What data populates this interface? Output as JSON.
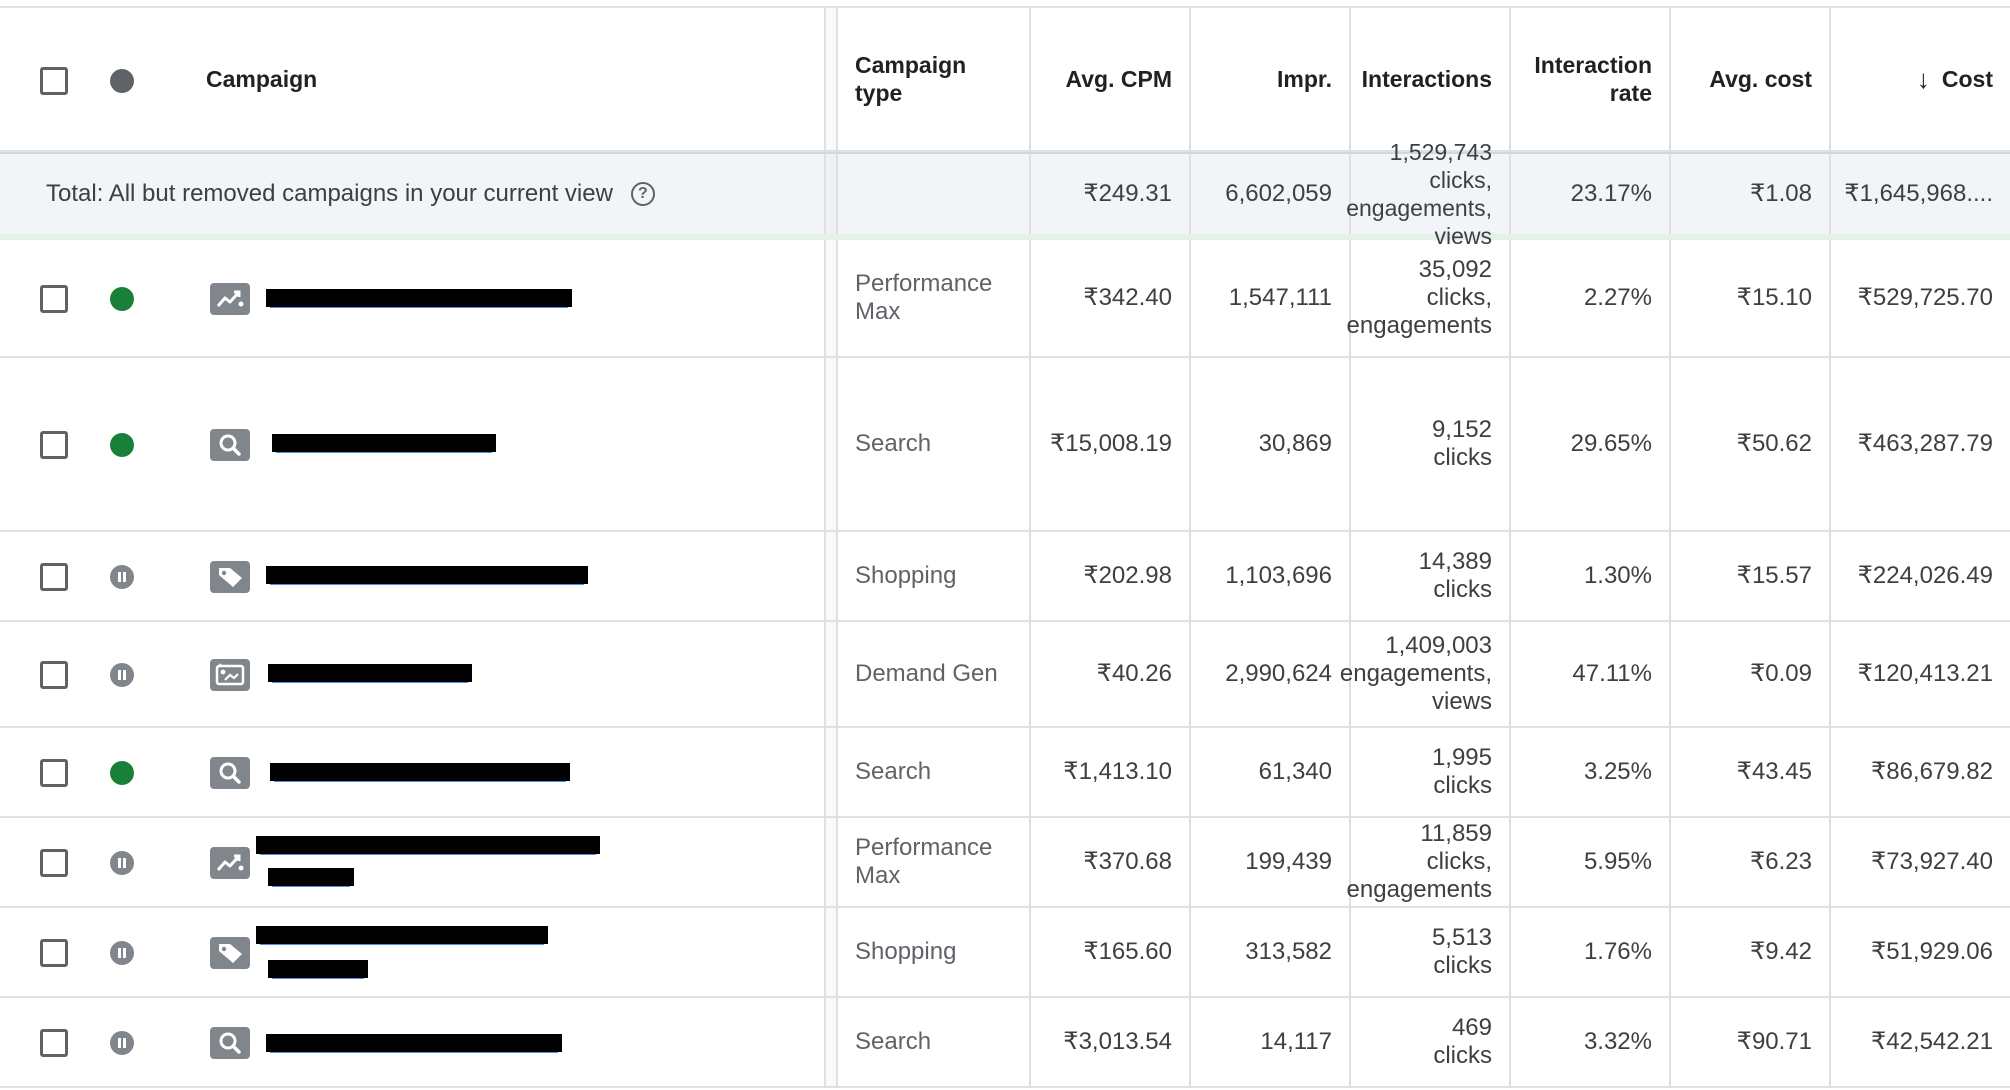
{
  "header": {
    "campaign": "Campaign",
    "campaign_type": "Campaign\ntype",
    "avg_cpm": "Avg. CPM",
    "impr": "Impr.",
    "interactions": "Interactions",
    "interaction_rate": "Interaction\nrate",
    "avg_cost": "Avg. cost",
    "cost": "Cost",
    "sort_icon": "arrow-down-icon"
  },
  "total": {
    "label": "Total: All but removed campaigns in your current view",
    "help_icon": "help-circle-icon",
    "help_glyph": "?",
    "avg_cpm": "₹249.31",
    "impr": "6,602,059",
    "interactions": "1,529,743\nclicks,\nengagements,\nviews",
    "interaction_rate": "23.17%",
    "avg_cost": "₹1.08",
    "cost": "₹1,645,968...."
  },
  "rows": [
    {
      "status": "enabled",
      "type_icon": "performance-max-icon",
      "campaign_type": "Performance\nMax",
      "avg_cpm": "₹342.40",
      "impr": "1,547,111",
      "interactions": "35,092\nclicks,\nengagements",
      "interaction_rate": "2.27%",
      "avg_cost": "₹15.10",
      "cost": "₹529,725.70"
    },
    {
      "status": "enabled",
      "type_icon": "search-icon",
      "campaign_type": "Search",
      "avg_cpm": "₹15,008.19",
      "impr": "30,869",
      "interactions": "9,152\nclicks",
      "interaction_rate": "29.65%",
      "avg_cost": "₹50.62",
      "cost": "₹463,287.79"
    },
    {
      "status": "paused",
      "type_icon": "shopping-tag-icon",
      "campaign_type": "Shopping",
      "avg_cpm": "₹202.98",
      "impr": "1,103,696",
      "interactions": "14,389\nclicks",
      "interaction_rate": "1.30%",
      "avg_cost": "₹15.57",
      "cost": "₹224,026.49"
    },
    {
      "status": "paused",
      "type_icon": "demand-gen-icon",
      "campaign_type": "Demand Gen",
      "avg_cpm": "₹40.26",
      "impr": "2,990,624",
      "interactions": "1,409,003\nengagements,\nviews",
      "interaction_rate": "47.11%",
      "avg_cost": "₹0.09",
      "cost": "₹120,413.21"
    },
    {
      "status": "enabled",
      "type_icon": "search-icon",
      "campaign_type": "Search",
      "avg_cpm": "₹1,413.10",
      "impr": "61,340",
      "interactions": "1,995\nclicks",
      "interaction_rate": "3.25%",
      "avg_cost": "₹43.45",
      "cost": "₹86,679.82"
    },
    {
      "status": "paused",
      "type_icon": "performance-max-icon",
      "campaign_type": "Performance\nMax",
      "avg_cpm": "₹370.68",
      "impr": "199,439",
      "interactions": "11,859\nclicks,\nengagements",
      "interaction_rate": "5.95%",
      "avg_cost": "₹6.23",
      "cost": "₹73,927.40"
    },
    {
      "status": "paused",
      "type_icon": "shopping-tag-icon",
      "campaign_type": "Shopping",
      "avg_cpm": "₹165.60",
      "impr": "313,582",
      "interactions": "5,513\nclicks",
      "interaction_rate": "1.76%",
      "avg_cost": "₹9.42",
      "cost": "₹51,929.06"
    },
    {
      "status": "paused",
      "type_icon": "search-icon",
      "campaign_type": "Search",
      "avg_cpm": "₹3,013.54",
      "impr": "14,117",
      "interactions": "469\nclicks",
      "interaction_rate": "3.32%",
      "avg_cost": "₹90.71",
      "cost": "₹42,542.21"
    }
  ],
  "colors": {
    "enabled": "#188038",
    "paused": "#80868b",
    "link": "#1a73e8",
    "total_bg": "#f1f5f8"
  }
}
